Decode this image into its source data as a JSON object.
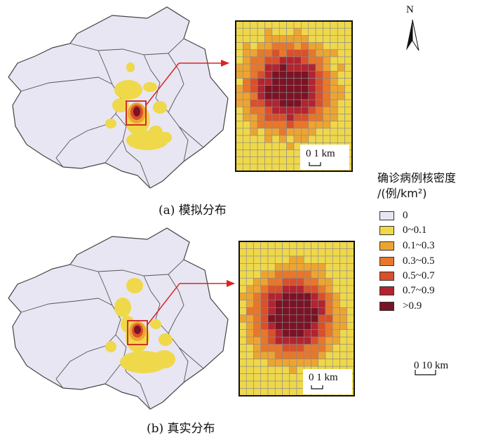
{
  "captions": {
    "a": "(a) 模拟分布",
    "b": "(b) 真实分布"
  },
  "north_label": "N",
  "legend": {
    "title_line1": "确诊病例核密度",
    "title_line2": "/(例/km²)",
    "items": [
      {
        "label": "0",
        "color": "#e8e6f2"
      },
      {
        "label": "0~0.1",
        "color": "#efd84a"
      },
      {
        "label": "0.1~0.3",
        "color": "#eda531"
      },
      {
        "label": "0.3~0.5",
        "color": "#e8772b"
      },
      {
        "label": "0.5~0.7",
        "color": "#d9502a"
      },
      {
        "label": "0.7~0.9",
        "color": "#b22430"
      },
      {
        "label": ">0.9",
        "color": "#7a1325"
      }
    ]
  },
  "scale_bars": {
    "inset": "0 1 km",
    "main": "0 10 km"
  },
  "colors": {
    "region_fill": "#e8e6f2",
    "region_stroke": "#444444",
    "highlight_box": "#cc2020",
    "arrow": "#dd2222"
  }
}
